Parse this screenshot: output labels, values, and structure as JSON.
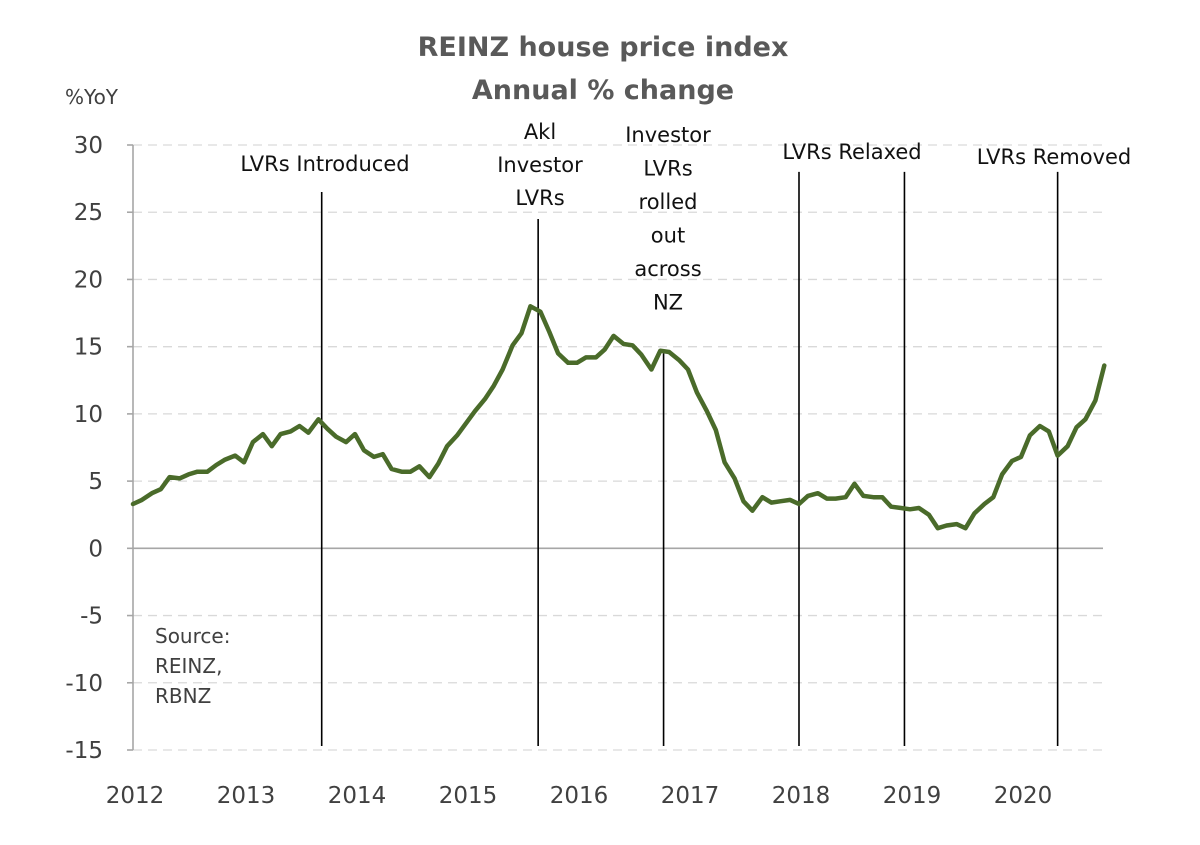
{
  "chart_data": {
    "type": "line",
    "title": [
      "REINZ house price index",
      "Annual % change"
    ],
    "ylabel": "%YoY",
    "xlabel": "",
    "ylim": [
      -15,
      30
    ],
    "yticks": [
      30,
      25,
      20,
      15,
      10,
      5,
      0,
      -5,
      -10,
      -15
    ],
    "xlim": [
      2012,
      2020.75
    ],
    "xticks": [
      "2012",
      "2013",
      "2014",
      "2015",
      "2016",
      "2017",
      "2018",
      "2019",
      "2020"
    ],
    "grid": true,
    "line_color": "#4a6b2a",
    "series": [
      {
        "name": "REINZ house price index annual % change",
        "x": [
          2012.0,
          2012.08,
          2012.17,
          2012.25,
          2012.33,
          2012.42,
          2012.5,
          2012.58,
          2012.67,
          2012.75,
          2012.83,
          2012.92,
          2013.0,
          2013.08,
          2013.17,
          2013.25,
          2013.33,
          2013.42,
          2013.5,
          2013.58,
          2013.67,
          2013.75,
          2013.83,
          2013.92,
          2014.0,
          2014.08,
          2014.17,
          2014.25,
          2014.33,
          2014.42,
          2014.5,
          2014.58,
          2014.67,
          2014.75,
          2014.83,
          2014.92,
          2015.0,
          2015.08,
          2015.17,
          2015.25,
          2015.33,
          2015.42,
          2015.5,
          2015.58,
          2015.67,
          2015.75,
          2015.83,
          2015.92,
          2016.0,
          2016.08,
          2016.17,
          2016.25,
          2016.33,
          2016.42,
          2016.5,
          2016.58,
          2016.67,
          2016.75,
          2016.83,
          2016.92,
          2017.0,
          2017.08,
          2017.17,
          2017.25,
          2017.33,
          2017.42,
          2017.5,
          2017.58,
          2017.67,
          2017.75,
          2017.83,
          2017.92,
          2018.0,
          2018.08,
          2018.17,
          2018.25,
          2018.33,
          2018.42,
          2018.5,
          2018.58,
          2018.67,
          2018.75,
          2018.83,
          2018.92,
          2019.0,
          2019.08,
          2019.17,
          2019.25,
          2019.33,
          2019.42,
          2019.5,
          2019.58,
          2019.67,
          2019.75,
          2019.83,
          2019.92,
          2020.0,
          2020.08,
          2020.17,
          2020.25,
          2020.33,
          2020.42,
          2020.5,
          2020.58,
          2020.67,
          2020.75
        ],
        "values": [
          3.3,
          3.6,
          4.1,
          4.4,
          5.3,
          5.2,
          5.5,
          5.7,
          5.7,
          6.2,
          6.6,
          6.9,
          6.4,
          7.9,
          8.5,
          7.6,
          8.5,
          8.7,
          9.1,
          8.6,
          9.6,
          8.9,
          8.3,
          7.9,
          8.5,
          7.3,
          6.8,
          7.0,
          5.9,
          5.7,
          5.7,
          6.1,
          5.3,
          6.3,
          7.6,
          8.4,
          9.3,
          10.2,
          11.1,
          12.1,
          13.3,
          15.1,
          16.0,
          18.0,
          17.6,
          16.1,
          14.5,
          13.8,
          13.8,
          14.2,
          14.2,
          14.8,
          15.8,
          15.2,
          15.1,
          14.4,
          13.3,
          14.7,
          14.6,
          14.0,
          13.3,
          11.6,
          10.2,
          8.8,
          6.4,
          5.2,
          3.5,
          2.8,
          3.8,
          3.4,
          3.5,
          3.6,
          3.3,
          3.9,
          4.1,
          3.7,
          3.7,
          3.8,
          4.8,
          3.9,
          3.8,
          3.8,
          3.1,
          3.0,
          2.9,
          3.0,
          2.5,
          1.5,
          1.7,
          1.8,
          1.5,
          2.6,
          3.3,
          3.8,
          5.5,
          6.5,
          6.8,
          8.4,
          9.1,
          8.7,
          6.9,
          7.6,
          9.0,
          9.6,
          11.0,
          13.6
        ]
      }
    ],
    "annotations": [
      {
        "x": 2013.7,
        "label": [
          "LVRs Introduced"
        ],
        "line_from": 26.5
      },
      {
        "x": 2015.65,
        "label": [
          "Akl",
          "Investor",
          "LVRs"
        ],
        "line_from": 24.5
      },
      {
        "x": 2016.78,
        "label": [
          "Investor",
          "LVRs",
          "rolled",
          "out",
          "across",
          "NZ"
        ],
        "line_from": 14.5
      },
      {
        "x": 2018.0,
        "label": [
          "LVRs Relaxed"
        ],
        "line_from": 28.0
      },
      {
        "x": 2018.95,
        "label": [
          "LVRs Relaxed"
        ],
        "line_from": 28.0,
        "label_hidden": true
      },
      {
        "x": 2020.33,
        "label": [
          "LVRs Removed"
        ],
        "line_from": 28.0
      }
    ],
    "source_note": [
      "Source:",
      "REINZ,",
      "RBNZ"
    ]
  }
}
